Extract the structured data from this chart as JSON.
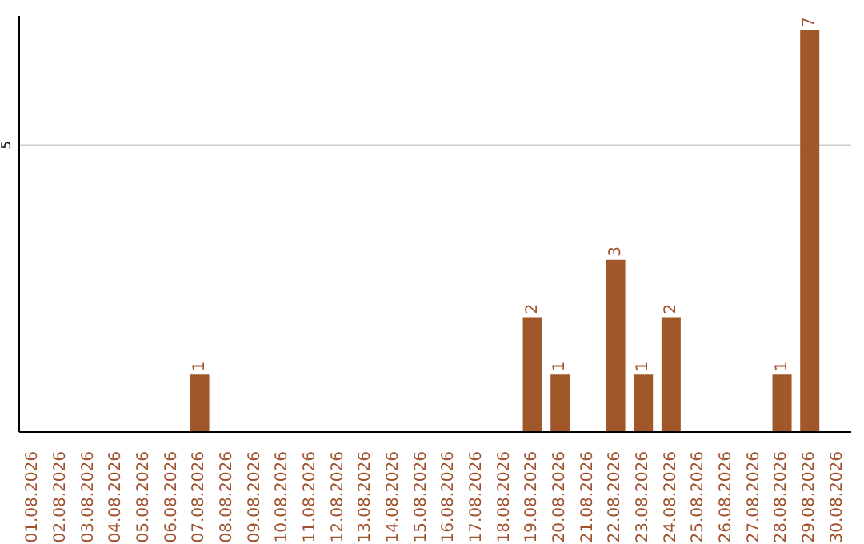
{
  "chart_data": {
    "type": "bar",
    "categories": [
      "01.08.2026",
      "02.08.2026",
      "03.08.2026",
      "04.08.2026",
      "05.08.2026",
      "06.08.2026",
      "07.08.2026",
      "08.08.2026",
      "09.08.2026",
      "10.08.2026",
      "11.08.2026",
      "12.08.2026",
      "13.08.2026",
      "14.08.2026",
      "15.08.2026",
      "16.08.2026",
      "17.08.2026",
      "18.08.2026",
      "19.08.2026",
      "20.08.2026",
      "21.08.2026",
      "22.08.2026",
      "23.08.2026",
      "24.08.2026",
      "25.08.2026",
      "26.08.2026",
      "27.08.2026",
      "28.08.2026",
      "29.08.2026",
      "30.08.2026"
    ],
    "values": [
      0,
      0,
      0,
      0,
      0,
      0,
      1,
      0,
      0,
      0,
      0,
      0,
      0,
      0,
      0,
      0,
      0,
      0,
      2,
      1,
      0,
      3,
      1,
      2,
      0,
      0,
      0,
      1,
      7,
      0
    ],
    "value_labels": [
      null,
      null,
      null,
      null,
      null,
      null,
      "1",
      null,
      null,
      null,
      null,
      null,
      null,
      null,
      null,
      null,
      null,
      null,
      "2",
      "1",
      null,
      "3",
      "1",
      "2",
      null,
      null,
      null,
      "1",
      "7",
      null
    ],
    "color": "#a0582a",
    "ylim": [
      0,
      7.25
    ],
    "yticks": [
      5
    ],
    "grid": "y"
  }
}
